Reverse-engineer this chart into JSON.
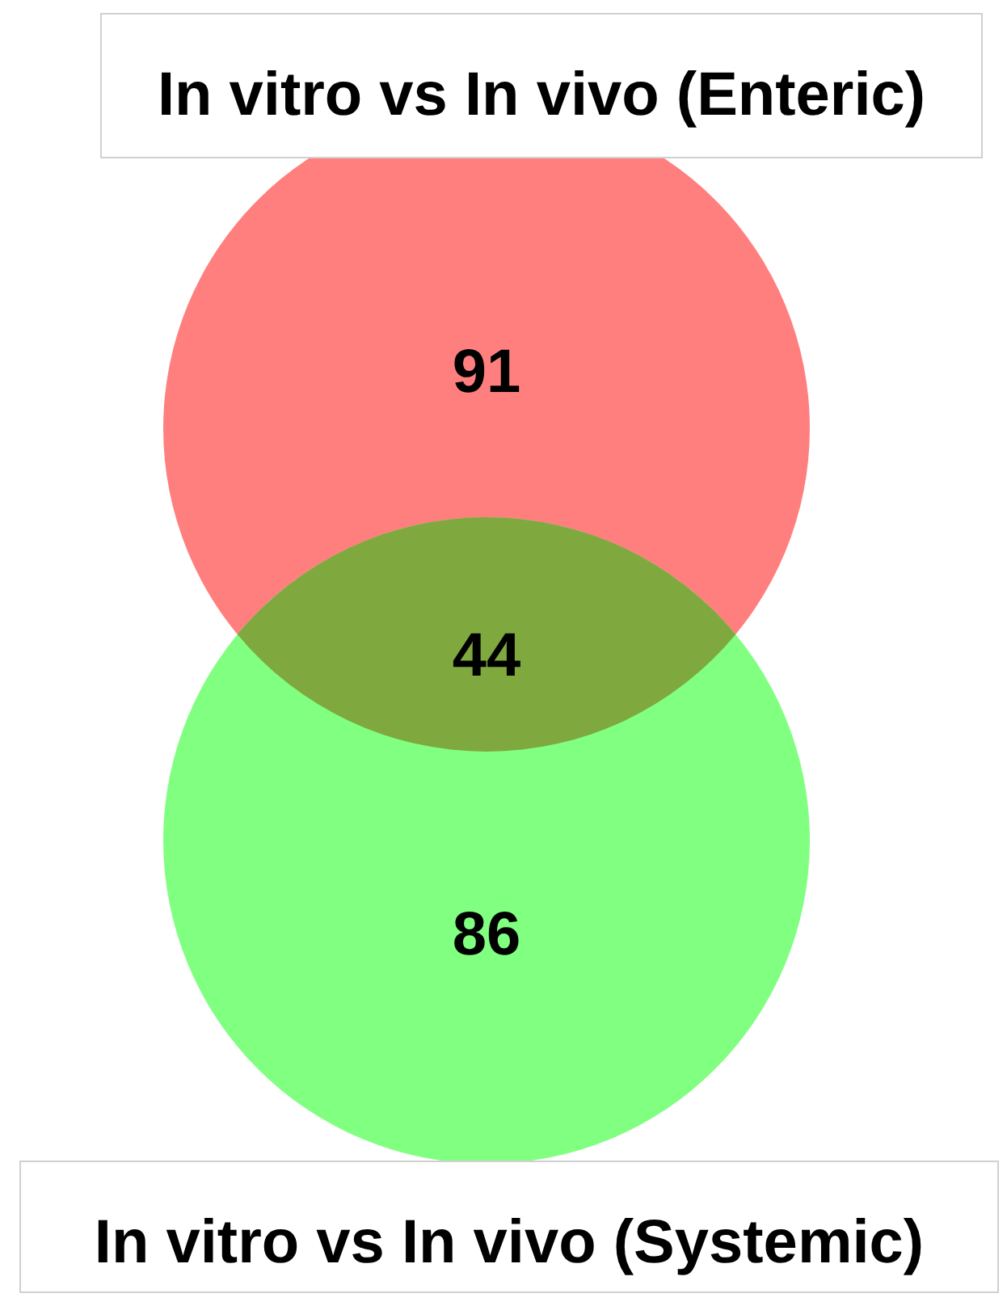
{
  "chart_data": {
    "type": "other",
    "title": "In vitro vs In vivo (Enteric)",
    "xlabel": "In vitro vs In vivo (Systemic)",
    "categories": [
      null,
      null,
      null
    ],
    "values": [
      91,
      44,
      86
    ],
    "colors": [
      "#ff7f7f",
      "#7fa83f",
      "#80ff80"
    ],
    "data_labels": true
  }
}
